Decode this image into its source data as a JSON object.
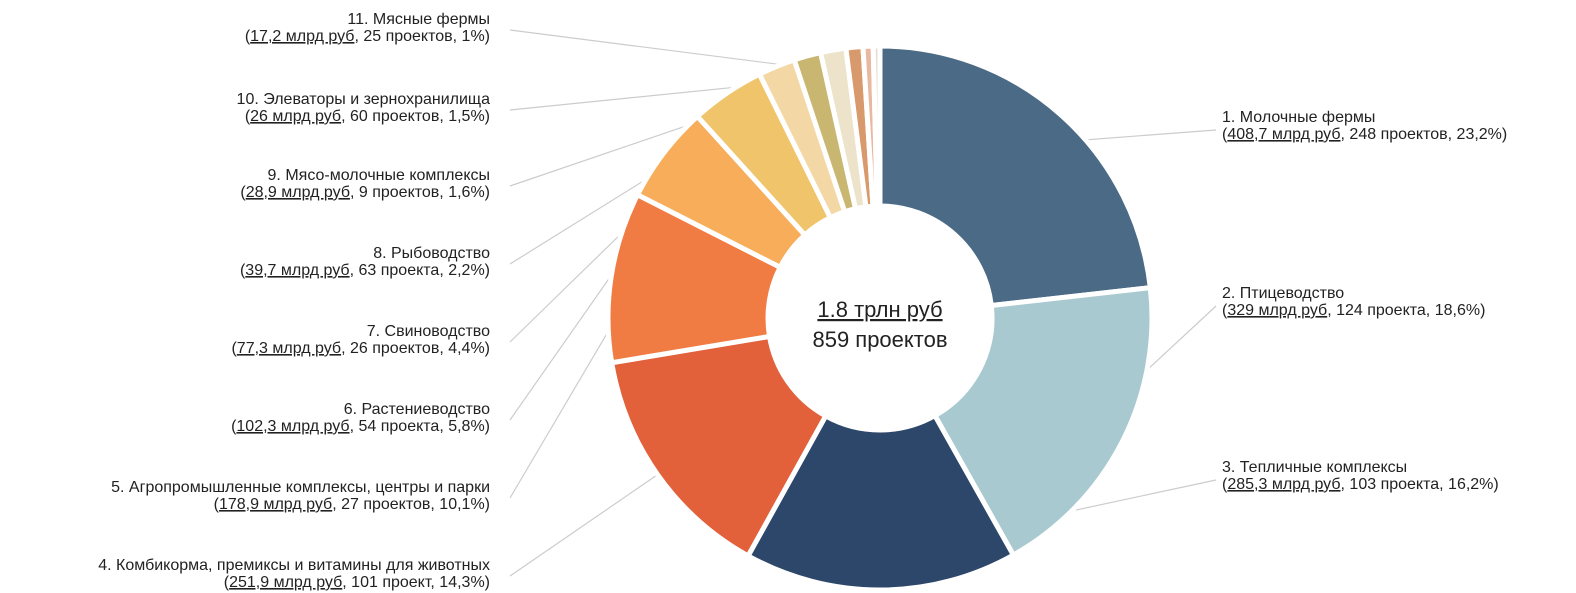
{
  "chart_data": {
    "type": "pie",
    "center": {
      "total": "1.8 трлн руб",
      "count": "859 проектов"
    },
    "slices": [
      {
        "name": "1. Молочные фермы",
        "amount": "408,7 млрд руб",
        "details": ", 248 проектов, 23,2%)",
        "value": 23.2,
        "color": "#4a6a85"
      },
      {
        "name": "2. Птицеводство",
        "amount": "329 млрд руб",
        "details": ", 124 проекта, 18,6%)",
        "value": 18.6,
        "color": "#a9c9d0"
      },
      {
        "name": "3. Тепличные комплексы",
        "amount": "285,3 млрд руб",
        "details": ", 103 проекта, 16,2%)",
        "value": 16.2,
        "color": "#2c476a"
      },
      {
        "name": "4. Комбикорма, премиксы и витамины для животных",
        "amount": "251,9 млрд руб",
        "details": ", 101 проект, 14,3%)",
        "value": 14.3,
        "color": "#e2613b"
      },
      {
        "name": "5. Агропромышленные комплексы, центры и парки",
        "amount": "178,9 млрд руб",
        "details": ", 27 проектов, 10,1%)",
        "value": 10.1,
        "color": "#f07c43"
      },
      {
        "name": "6. Растениеводство",
        "amount": "102,3 млрд руб",
        "details": ", 54 проекта, 5,8%)",
        "value": 5.8,
        "color": "#f7ad5a"
      },
      {
        "name": "7. Свиноводство",
        "amount": "77,3 млрд руб",
        "details": ", 26 проектов, 4,4%)",
        "value": 4.4,
        "color": "#f0c46a"
      },
      {
        "name": "8. Рыбоводство",
        "amount": "39,7 млрд руб",
        "details": ", 63 проекта, 2,2%)",
        "value": 2.2,
        "color": "#f3d8a6"
      },
      {
        "name": "9. Мясо-молочные комплексы",
        "amount": "28,9 млрд руб",
        "details": ", 9 проектов, 1,6%)",
        "value": 1.6,
        "color": "#c9b670"
      },
      {
        "name": "10. Элеваторы и зернохранилища",
        "amount": "26 млрд руб",
        "details": ", 60 проектов, 1,5%)",
        "value": 1.5,
        "color": "#ede3cb"
      },
      {
        "name": "11. Мясные фермы",
        "amount": "17,2 млрд руб",
        "details": ", 25 проектов, 1%)",
        "value": 1.0,
        "color": "#d89a6c"
      },
      {
        "name": "",
        "amount": "",
        "details": "",
        "value": 0.6,
        "color": "#e9b8a0"
      },
      {
        "name": "",
        "amount": "",
        "details": "",
        "value": 0.4,
        "color": "#e8ddd0"
      }
    ]
  }
}
